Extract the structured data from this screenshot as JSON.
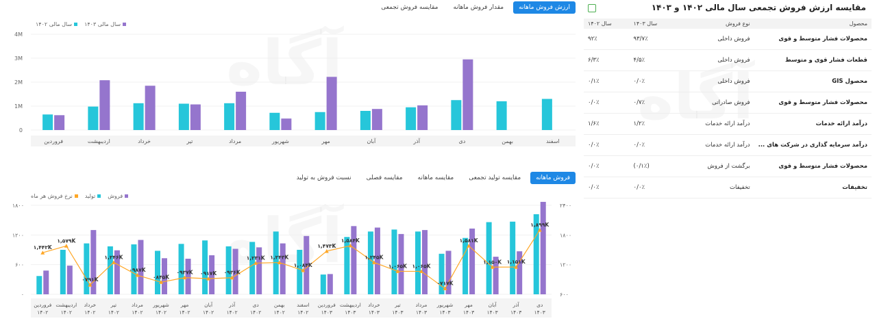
{
  "top_tabs": [
    {
      "label": "ارزش فروش ماهانه",
      "active": true
    },
    {
      "label": "مقدار فروش ماهانه",
      "active": false
    },
    {
      "label": "مقایسه فروش تجمعی",
      "active": false
    }
  ],
  "bottom_tabs": [
    {
      "label": "فروش ماهانه",
      "active": true
    },
    {
      "label": "مقایسه تولید تجمعی",
      "active": false
    },
    {
      "label": "مقایسه ماهانه",
      "active": false
    },
    {
      "label": "مقایسه فصلی",
      "active": false
    },
    {
      "label": "نسبت فروش به تولید",
      "active": false
    }
  ],
  "watermark": "آگاه",
  "colors": {
    "teal": "#26c6da",
    "purple": "#9575cd",
    "orange": "#ffa726",
    "accent": "#1e88e5"
  },
  "table": {
    "title": "مقایسه ارزش فروش تجمعی سال مالی ۱۴۰۲ و ۱۴۰۳",
    "icon": "excel-icon",
    "headers": [
      "محصول",
      "نوع فروش",
      "سال ۱۴۰۳",
      "سال ۱۴۰۲"
    ],
    "rows": [
      [
        "محصولات فشار متوسط و قوی",
        "فروش داخلی",
        "۹۳/۷٪",
        "۹۲٪"
      ],
      [
        "قطعات فشار قوی و متوسط",
        "فروش داخلی",
        "۴/۵٪",
        "۶/۳٪"
      ],
      [
        "محصول GIS",
        "فروش داخلی",
        "۰/۰٪",
        "۰/۱٪"
      ],
      [
        "محصولات فشار متوسط و قوی",
        "فروش صادراتی",
        "۰/۷٪",
        "۰/۰٪"
      ],
      [
        "درآمد ارائه خدمات",
        "درآمد ارائه خدمات",
        "۱/۲٪",
        "۱/۶٪"
      ],
      [
        "درآمد سرمایه گذاری در شرکت های ...",
        "درآمد ارائه خدمات",
        "۰/۰٪",
        "۰/۰٪"
      ],
      [
        "محصولات فشار متوسط و قوی",
        "برگشت از فروش",
        "(۰/۱٪)",
        "۰/۰٪"
      ],
      [
        "تخفیفات",
        "تخفیفات",
        "۰/۰٪",
        "۰/۰٪"
      ]
    ]
  },
  "chart_data": [
    {
      "type": "bar",
      "categories": [
        "اسفند",
        "بهمن",
        "دی",
        "آذر",
        "آبان",
        "مهر",
        "شهریور",
        "مرداد",
        "تیر",
        "خرداد",
        "اردیبهشت",
        "فروردین"
      ],
      "series": [
        {
          "name": "سال مالی ۱۴۰۲",
          "color": "#26c6da",
          "values": [
            1.3,
            1.2,
            1.25,
            0.95,
            0.8,
            0.75,
            0.72,
            1.12,
            1.1,
            1.12,
            0.98,
            0.65
          ]
        },
        {
          "name": "سال مالی ۱۴۰۳",
          "color": "#9575cd",
          "values": [
            null,
            null,
            2.95,
            1.03,
            0.88,
            2.22,
            0.48,
            1.6,
            1.07,
            1.85,
            2.08,
            0.62
          ]
        }
      ],
      "yticks": [
        "4M",
        "3M",
        "2M",
        "1M",
        "0"
      ],
      "ylim": [
        0,
        4
      ],
      "legend": "top-left"
    },
    {
      "type": "bar+line",
      "categories": [
        [
          "فروردین",
          "۱۴۰۲"
        ],
        [
          "اردیبهشت",
          "۱۴۰۲"
        ],
        [
          "خرداد",
          "۱۴۰۲"
        ],
        [
          "تیر",
          "۱۴۰۲"
        ],
        [
          "مرداد",
          "۱۴۰۲"
        ],
        [
          "شهریور",
          "۱۴۰۲"
        ],
        [
          "مهر",
          "۱۴۰۲"
        ],
        [
          "آبان",
          "۱۴۰۲"
        ],
        [
          "آذر",
          "۱۴۰۲"
        ],
        [
          "دی",
          "۱۴۰۲"
        ],
        [
          "بهمن",
          "۱۴۰۲"
        ],
        [
          "اسفند",
          "۱۴۰۲"
        ],
        [
          "فروردین",
          "۱۴۰۳"
        ],
        [
          "اردیبهشت",
          "۱۴۰۳"
        ],
        [
          "خرداد",
          "۱۴۰۳"
        ],
        [
          "تیر",
          "۱۴۰۳"
        ],
        [
          "مرداد",
          "۱۴۰۳"
        ],
        [
          "شهریور",
          "۱۴۰۳"
        ],
        [
          "مهر",
          "۱۴۰۳"
        ],
        [
          "آبان",
          "۱۴۰۳"
        ],
        [
          "آذر",
          "۱۴۰۳"
        ],
        [
          "دی",
          "۱۴۰۳"
        ]
      ],
      "bar_series": [
        {
          "name": "تولید",
          "color": "#26c6da",
          "values": [
            370,
            900,
            1030,
            970,
            1010,
            880,
            1020,
            1090,
            970,
            1060,
            1270,
            900,
            400,
            1160,
            1270,
            1310,
            1270,
            820,
            1140,
            1460,
            1470,
            1620
          ]
        },
        {
          "name": "فروش",
          "color": "#9575cd",
          "values": [
            480,
            580,
            1300,
            890,
            1100,
            730,
            720,
            790,
            920,
            950,
            1030,
            1180,
            410,
            1380,
            1350,
            1220,
            1300,
            880,
            1330,
            760,
            870,
            1870
          ]
        }
      ],
      "line_series": {
        "name": "نرخ فروش هر ماه",
        "color": "#ffa726",
        "values": [
          1442,
          1579,
          791,
          1246,
          987,
          845,
          937,
          917,
          936,
          1231,
          1243,
          1084,
          1473,
          1584,
          1245,
          1065,
          1065,
          717,
          1581,
          1150,
          1151,
          1899
        ],
        "labels": [
          "۱,۴۴۲K",
          "۱,۵۷۹K",
          "۰۷۹۱K",
          "۱,۲۴۶K",
          "۰۹۸۷K",
          "۰۸۴۵K",
          "۰۹۳۷K",
          "۰۹۱۷K",
          "۰۹۳۶K",
          "۱,۲۳۱K",
          "۱,۲۴۳K",
          "۱,۰۸۴K",
          "۱,۴۷۳K",
          "۱,۵۸۴K",
          "۱,۲۴۵K",
          "۱,۰۶۵K",
          "۱,۰۶۵K",
          "۰۷۱۷K",
          "۱,۵۸۱K",
          "۱,۱۵۰K",
          "۱,۱۵۱K",
          "۱,۸۹۹K"
        ]
      },
      "yticks_left": [
        "۱۸۰۰",
        "۱۲۰۰",
        "۶۰۰",
        "۰"
      ],
      "ylim_left": [
        0,
        1800
      ],
      "yticks_right": [
        "۲۴۰۰",
        "۱۸۰۰",
        "۱۲۰۰",
        "۶۰۰"
      ],
      "ylim_right": [
        600,
        2400
      ],
      "legend": "top-left"
    }
  ]
}
